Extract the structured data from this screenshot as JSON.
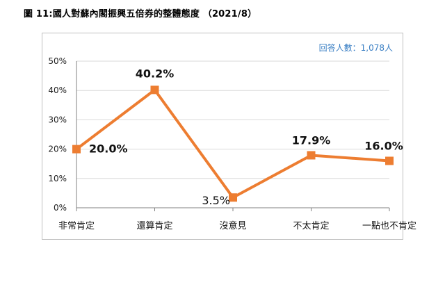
{
  "title": "圖 11:國人對蘇內閣振興五倍券的整體態度 （2021/8）",
  "respondents": "回答人數：1,078人",
  "colors": {
    "line": "#ed7d31",
    "grid": "#d9d9d9",
    "axis": "#808080"
  },
  "chart_data": {
    "type": "line",
    "title": "圖 11:國人對蘇內閣振興五倍券的整體態度 （2021/8）",
    "categories": [
      "非常肯定",
      "還算肯定",
      "沒意見",
      "不太肯定",
      "一點也不肯定"
    ],
    "values": [
      20.0,
      40.2,
      3.5,
      17.9,
      16.0
    ],
    "data_labels": [
      "20.0%",
      "40.2%",
      "3.5%",
      "17.9%",
      "16.0%"
    ],
    "y_ticks": [
      "0%",
      "10%",
      "20%",
      "30%",
      "40%",
      "50%"
    ],
    "ylim": [
      0,
      50
    ],
    "grid": true,
    "marker": "square"
  }
}
